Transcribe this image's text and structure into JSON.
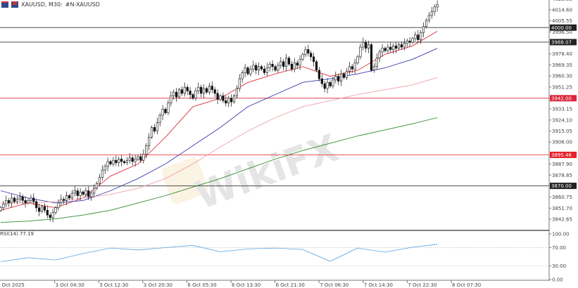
{
  "header": {
    "symbol": "XAUUSD, M30:",
    "description": "#N-XAUUSD",
    "icons": [
      "chart-type-icon",
      "symbol-flag-icon"
    ]
  },
  "price_axis": {
    "ticks": [
      "4023.65",
      "4014.60",
      "4005.55",
      "3996.50",
      "3978.40",
      "3969.35",
      "3960.30",
      "3951.25",
      "3933.15",
      "3924.10",
      "3915.05",
      "3906.00",
      "3887.90",
      "3878.85",
      "3860.75",
      "3851.70",
      "3842.65"
    ]
  },
  "levels": [
    {
      "label": "4000.00",
      "value": 4000.0,
      "color": "#222222"
    },
    {
      "label": "3988.07",
      "value": 3988.07,
      "color": "#222222"
    },
    {
      "label": "3942.00",
      "value": 3942.0,
      "color": "#d9263a"
    },
    {
      "label": "3895.46",
      "value": 3895.46,
      "color": "#e8202a"
    },
    {
      "label": "3870.00",
      "value": 3870.0,
      "color": "#222222"
    }
  ],
  "time_axis": [
    "2 Oct 2025",
    "3 Oct 04:30",
    "3 Oct 12:30",
    "3 Oct 20:30",
    "6 Oct 05:30",
    "6 Oct 13:30",
    "6 Oct 21:30",
    "7 Oct 06:30",
    "7 Oct 14:30",
    "7 Oct 22:30",
    "8 Oct 07:30"
  ],
  "chart_data": {
    "type": "candlestick",
    "closes": [
      3852,
      3855,
      3858,
      3856,
      3860,
      3857,
      3859,
      3861,
      3858,
      3856,
      3858,
      3860,
      3857,
      3852,
      3849,
      3853,
      3850,
      3846,
      3844,
      3848,
      3852,
      3856,
      3859,
      3858,
      3862,
      3860,
      3864,
      3866,
      3862,
      3865,
      3863,
      3866,
      3861,
      3864,
      3868,
      3872,
      3877,
      3883,
      3886,
      3890,
      3888,
      3891,
      3889,
      3892,
      3890,
      3889,
      3891,
      3893,
      3890,
      3892,
      3894,
      3891,
      3896,
      3903,
      3910,
      3918,
      3915,
      3922,
      3928,
      3933,
      3930,
      3938,
      3944,
      3947,
      3943,
      3949,
      3946,
      3951,
      3948,
      3945,
      3942,
      3948,
      3951,
      3946,
      3950,
      3947,
      3952,
      3949,
      3946,
      3941,
      3944,
      3940,
      3938,
      3942,
      3939,
      3944,
      3950,
      3958,
      3963,
      3967,
      3962,
      3966,
      3969,
      3965,
      3968,
      3966,
      3963,
      3967,
      3970,
      3968,
      3965,
      3969,
      3972,
      3968,
      3975,
      3970,
      3966,
      3971,
      3969,
      3974,
      3978,
      3982,
      3979,
      3976,
      3972,
      3965,
      3958,
      3954,
      3950,
      3955,
      3952,
      3957,
      3960,
      3956,
      3962,
      3959,
      3964,
      3968,
      3966,
      3971,
      3976,
      3984,
      3988,
      3983,
      3986,
      3965,
      3968,
      3975,
      3980,
      3983,
      3981,
      3984,
      3982,
      3985,
      3983,
      3986,
      3984,
      3987,
      3989,
      3988,
      3991,
      3994,
      3990,
      3996,
      4001,
      4006,
      4010,
      4013,
      4017,
      4019
    ],
    "ylim": [
      3838,
      4027
    ],
    "ma_sample_bars": [
      0,
      10,
      20,
      30,
      40,
      50,
      60,
      70,
      80,
      90,
      100,
      110,
      120,
      130,
      140,
      150,
      159
    ],
    "moving_averages": [
      {
        "color": "#e0303a",
        "values": [
          3850,
          3856,
          3852,
          3860,
          3878,
          3888,
          3910,
          3935,
          3942,
          3955,
          3962,
          3968,
          3960,
          3965,
          3978,
          3985,
          3997
        ]
      },
      {
        "color": "#3a3ab0",
        "values": [
          3866,
          3860,
          3856,
          3858,
          3866,
          3876,
          3888,
          3903,
          3918,
          3935,
          3945,
          3955,
          3958,
          3962,
          3967,
          3974,
          3983
        ]
      },
      {
        "color": "#f0a0a8",
        "values": [
          3856,
          3856,
          3857,
          3860,
          3863,
          3868,
          3876,
          3888,
          3902,
          3915,
          3926,
          3935,
          3940,
          3945,
          3949,
          3953,
          3959
        ]
      },
      {
        "color": "#2e8b2e",
        "values": [
          3840,
          3841,
          3843,
          3846,
          3850,
          3856,
          3862,
          3869,
          3876,
          3884,
          3892,
          3899,
          3905,
          3911,
          3916,
          3921,
          3926
        ]
      }
    ],
    "rsi": {
      "label": "RSI(14) 77.19",
      "color": "#5aa0e0",
      "ticks": [
        "100.00",
        "70.00",
        "30.00",
        "0.00"
      ],
      "levels": [
        70,
        30
      ],
      "values": [
        39,
        48,
        43,
        57,
        69,
        65,
        70,
        75,
        61,
        67,
        69,
        66,
        40,
        69,
        60,
        71,
        77.19
      ]
    }
  },
  "watermark": "WikiFX"
}
